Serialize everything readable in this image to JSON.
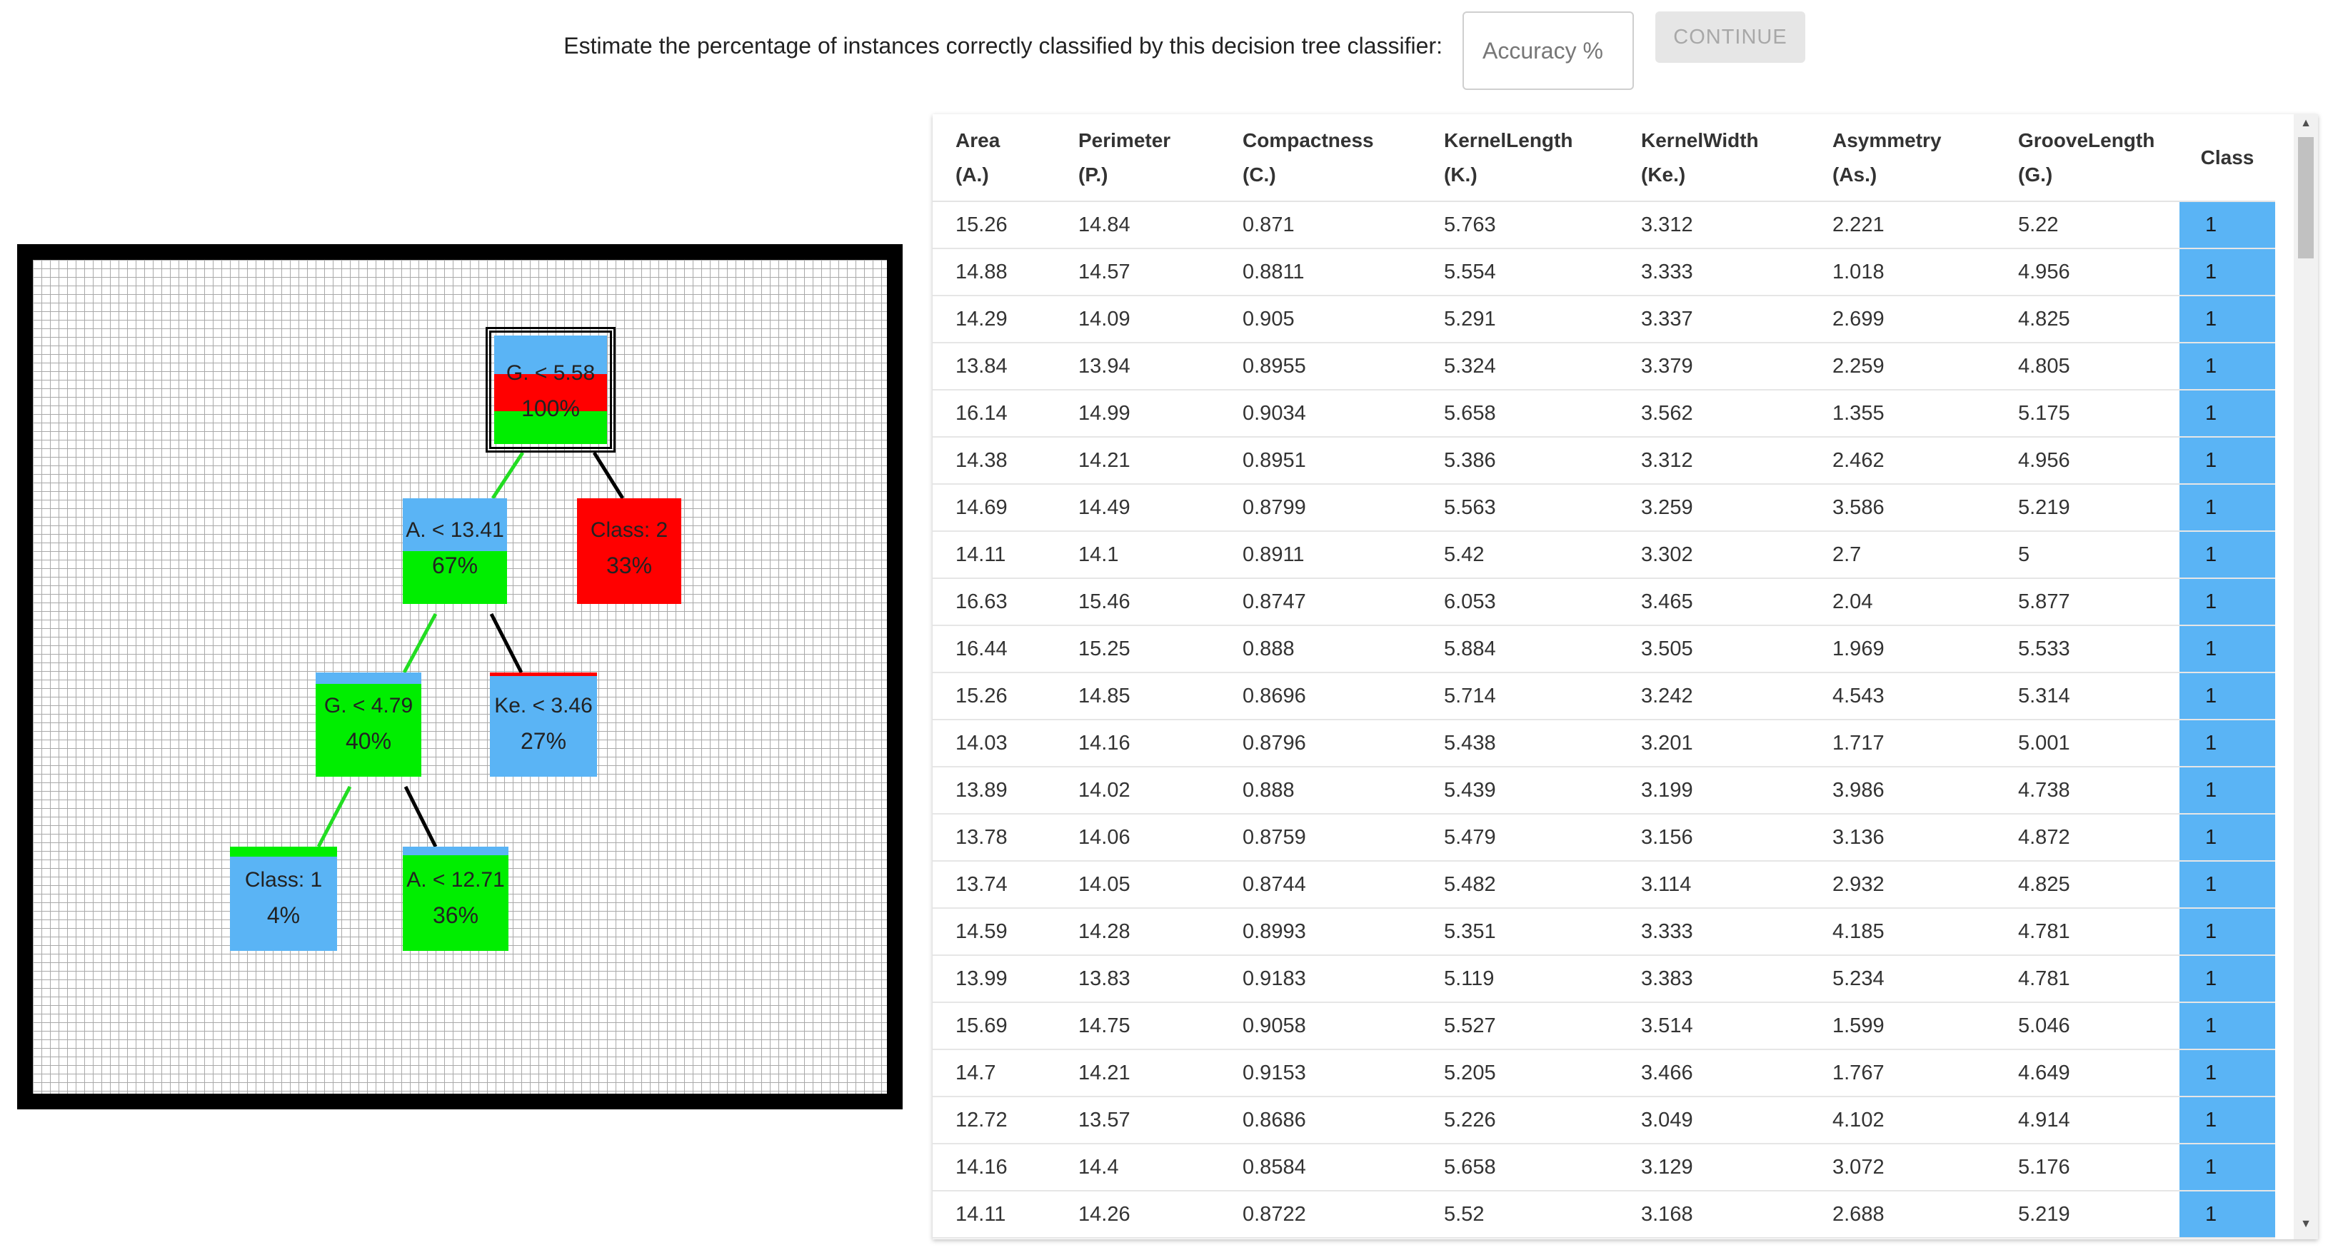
{
  "prompt": {
    "text": "Estimate the percentage of instances correctly classified by this decision tree classifier:",
    "input_placeholder": "Accuracy %",
    "input_value": "",
    "continue_label": "CONTINUE"
  },
  "colors": {
    "class1": "#5ab4f5",
    "class2": "#ff0000",
    "class3": "#00ee00",
    "edge_left": "#22dd22",
    "edge_right": "#000000",
    "panel_border": "#000000"
  },
  "tree": {
    "nodes": [
      {
        "id": "root",
        "label": "G. < 5.58",
        "pct": "100%",
        "class_shares": [
          0.33,
          0.33,
          0.34
        ]
      },
      {
        "id": "a-13-41",
        "label": "A. < 13.41",
        "pct": "67%",
        "class_shares": [
          0.5,
          0.0,
          0.5
        ]
      },
      {
        "id": "class-2-leaf",
        "label": "Class: 2",
        "pct": "33%",
        "class_shares": [
          0.0,
          1.0,
          0.0
        ]
      },
      {
        "id": "g-4-79",
        "label": "G. < 4.79",
        "pct": "40%",
        "class_shares": [
          0.1,
          0.0,
          0.9
        ]
      },
      {
        "id": "ke-3-46",
        "label": "Ke. < 3.46",
        "pct": "27%",
        "class_shares": [
          0.96,
          0.04,
          0.0
        ]
      },
      {
        "id": "class-1-leaf",
        "label": "Class: 1",
        "pct": "4%",
        "class_shares": [
          0.9,
          0.0,
          0.1
        ]
      },
      {
        "id": "a-12-71",
        "label": "A. < 12.71",
        "pct": "36%",
        "class_shares": [
          0.08,
          0.0,
          0.92
        ]
      }
    ]
  },
  "table": {
    "headers": [
      [
        "Area",
        "(A.)"
      ],
      [
        "Perimeter",
        "(P.)"
      ],
      [
        "Compactness",
        "(C.)"
      ],
      [
        "KernelLength",
        "(K.)"
      ],
      [
        "KernelWidth",
        "(Ke.)"
      ],
      [
        "Asymmetry",
        "(As.)"
      ],
      [
        "GrooveLength",
        "(G.)"
      ],
      [
        "Class",
        ""
      ]
    ],
    "rows": [
      [
        "15.26",
        "14.84",
        "0.871",
        "5.763",
        "3.312",
        "2.221",
        "5.22",
        "1"
      ],
      [
        "14.88",
        "14.57",
        "0.8811",
        "5.554",
        "3.333",
        "1.018",
        "4.956",
        "1"
      ],
      [
        "14.29",
        "14.09",
        "0.905",
        "5.291",
        "3.337",
        "2.699",
        "4.825",
        "1"
      ],
      [
        "13.84",
        "13.94",
        "0.8955",
        "5.324",
        "3.379",
        "2.259",
        "4.805",
        "1"
      ],
      [
        "16.14",
        "14.99",
        "0.9034",
        "5.658",
        "3.562",
        "1.355",
        "5.175",
        "1"
      ],
      [
        "14.38",
        "14.21",
        "0.8951",
        "5.386",
        "3.312",
        "2.462",
        "4.956",
        "1"
      ],
      [
        "14.69",
        "14.49",
        "0.8799",
        "5.563",
        "3.259",
        "3.586",
        "5.219",
        "1"
      ],
      [
        "14.11",
        "14.1",
        "0.8911",
        "5.42",
        "3.302",
        "2.7",
        "5",
        "1"
      ],
      [
        "16.63",
        "15.46",
        "0.8747",
        "6.053",
        "3.465",
        "2.04",
        "5.877",
        "1"
      ],
      [
        "16.44",
        "15.25",
        "0.888",
        "5.884",
        "3.505",
        "1.969",
        "5.533",
        "1"
      ],
      [
        "15.26",
        "14.85",
        "0.8696",
        "5.714",
        "3.242",
        "4.543",
        "5.314",
        "1"
      ],
      [
        "14.03",
        "14.16",
        "0.8796",
        "5.438",
        "3.201",
        "1.717",
        "5.001",
        "1"
      ],
      [
        "13.89",
        "14.02",
        "0.888",
        "5.439",
        "3.199",
        "3.986",
        "4.738",
        "1"
      ],
      [
        "13.78",
        "14.06",
        "0.8759",
        "5.479",
        "3.156",
        "3.136",
        "4.872",
        "1"
      ],
      [
        "13.74",
        "14.05",
        "0.8744",
        "5.482",
        "3.114",
        "2.932",
        "4.825",
        "1"
      ],
      [
        "14.59",
        "14.28",
        "0.8993",
        "5.351",
        "3.333",
        "4.185",
        "4.781",
        "1"
      ],
      [
        "13.99",
        "13.83",
        "0.9183",
        "5.119",
        "3.383",
        "5.234",
        "4.781",
        "1"
      ],
      [
        "15.69",
        "14.75",
        "0.9058",
        "5.527",
        "3.514",
        "1.599",
        "5.046",
        "1"
      ],
      [
        "14.7",
        "14.21",
        "0.9153",
        "5.205",
        "3.466",
        "1.767",
        "4.649",
        "1"
      ],
      [
        "12.72",
        "13.57",
        "0.8686",
        "5.226",
        "3.049",
        "4.102",
        "4.914",
        "1"
      ],
      [
        "14.16",
        "14.4",
        "0.8584",
        "5.658",
        "3.129",
        "3.072",
        "5.176",
        "1"
      ],
      [
        "14.11",
        "14.26",
        "0.8722",
        "5.52",
        "3.168",
        "2.688",
        "5.219",
        "1"
      ]
    ]
  }
}
